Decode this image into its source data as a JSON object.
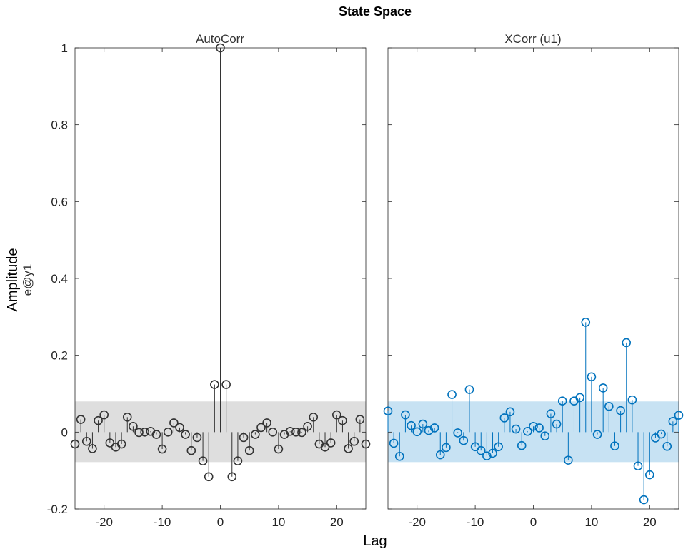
{
  "figure": {
    "title": "State Space",
    "xlabel": "Lag",
    "ylabel": "Amplitude",
    "ylabel_sub": "e@y1"
  },
  "chart_data": [
    {
      "type": "stem",
      "title": "AutoCorr",
      "xlabel": "Lag",
      "ylabel": "Amplitude",
      "xlim": [
        -25,
        25
      ],
      "ylim": [
        -0.2,
        1.0
      ],
      "xticks": [
        -20,
        -10,
        0,
        10,
        20
      ],
      "yticks": [
        -0.2,
        0,
        0.2,
        0.4,
        0.6,
        0.8,
        1
      ],
      "grid": false,
      "confidence_band": [
        -0.078,
        0.08
      ],
      "color": "#333333",
      "band_color": "#dedede",
      "x": [
        -25,
        -24,
        -23,
        -22,
        -21,
        -20,
        -19,
        -18,
        -17,
        -16,
        -15,
        -14,
        -13,
        -12,
        -11,
        -10,
        -9,
        -8,
        -7,
        -6,
        -5,
        -4,
        -3,
        -2,
        -1,
        0,
        1,
        2,
        3,
        4,
        5,
        6,
        7,
        8,
        9,
        10,
        11,
        12,
        13,
        14,
        15,
        16,
        17,
        18,
        19,
        20,
        21,
        22,
        23,
        24,
        25
      ],
      "y": [
        -0.031,
        0.033,
        -0.024,
        -0.043,
        0.03,
        0.045,
        -0.028,
        -0.039,
        -0.031,
        0.039,
        0.015,
        -0.001,
        0.0,
        0.002,
        -0.006,
        -0.044,
        0.0,
        0.024,
        0.012,
        -0.006,
        -0.048,
        -0.014,
        -0.075,
        -0.116,
        0.124,
        1.0,
        0.124,
        -0.116,
        -0.075,
        -0.014,
        -0.048,
        -0.006,
        0.012,
        0.024,
        0.0,
        -0.044,
        -0.006,
        0.002,
        0.0,
        -0.001,
        0.015,
        0.039,
        -0.031,
        -0.039,
        -0.028,
        0.045,
        0.03,
        -0.043,
        -0.024,
        0.033,
        -0.031
      ]
    },
    {
      "type": "stem",
      "title": "XCorr (u1)",
      "xlabel": "Lag",
      "ylabel": "Amplitude",
      "xlim": [
        -25,
        25
      ],
      "ylim": [
        -0.2,
        1.0
      ],
      "xticks": [
        -20,
        -10,
        0,
        10,
        20
      ],
      "yticks": [
        -0.2,
        0,
        0.2,
        0.4,
        0.6,
        0.8,
        1
      ],
      "grid": false,
      "confidence_band": [
        -0.078,
        0.08
      ],
      "color": "#0072bd",
      "band_color": "#c7e2f3",
      "x": [
        -25,
        -24,
        -23,
        -22,
        -21,
        -20,
        -19,
        -18,
        -17,
        -16,
        -15,
        -14,
        -13,
        -12,
        -11,
        -10,
        -9,
        -8,
        -7,
        -6,
        -5,
        -4,
        -3,
        -2,
        -1,
        0,
        1,
        2,
        3,
        4,
        5,
        6,
        7,
        8,
        9,
        10,
        11,
        12,
        13,
        14,
        15,
        16,
        17,
        18,
        19,
        20,
        21,
        22,
        23,
        24,
        25
      ],
      "y": [
        0.055,
        -0.029,
        -0.063,
        0.045,
        0.017,
        0.001,
        0.021,
        0.004,
        0.011,
        -0.059,
        -0.04,
        0.098,
        -0.002,
        -0.022,
        0.111,
        -0.038,
        -0.048,
        -0.062,
        -0.055,
        -0.038,
        0.037,
        0.053,
        0.008,
        -0.035,
        0.002,
        0.015,
        0.011,
        -0.01,
        0.048,
        0.021,
        0.081,
        -0.073,
        0.081,
        0.09,
        0.286,
        0.144,
        -0.006,
        0.115,
        0.067,
        -0.036,
        0.056,
        0.233,
        0.084,
        -0.088,
        -0.176,
        -0.111,
        -0.015,
        -0.005,
        -0.037,
        0.028,
        0.044
      ]
    }
  ]
}
